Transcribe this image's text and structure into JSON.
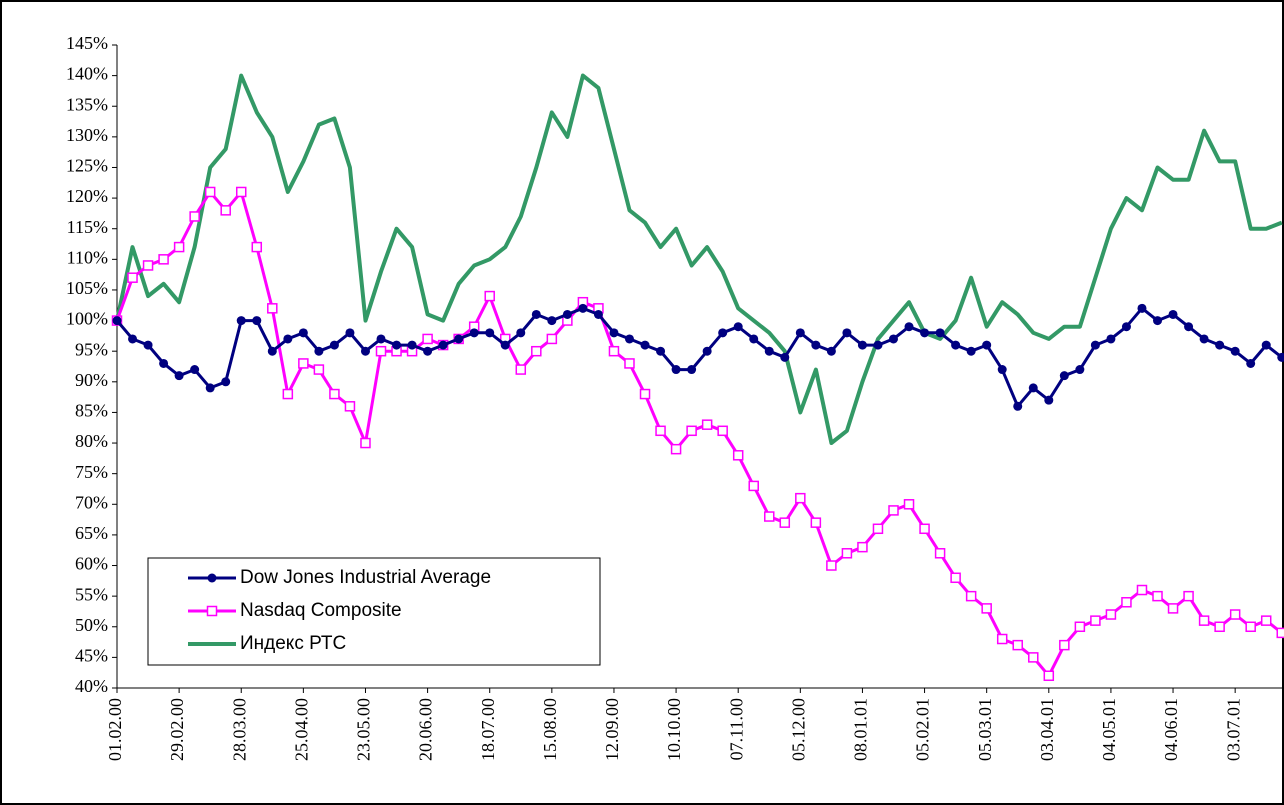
{
  "chart_data": {
    "type": "line",
    "categories": [
      "01.02.00",
      null,
      null,
      null,
      "29.02.00",
      null,
      null,
      null,
      "28.03.00",
      null,
      null,
      null,
      "25.04.00",
      null,
      null,
      null,
      "23.05.00",
      null,
      null,
      null,
      "20.06.00",
      null,
      null,
      null,
      "18.07.00",
      null,
      null,
      null,
      "15.08.00",
      null,
      null,
      null,
      "12.09.00",
      null,
      null,
      null,
      "10.10.00",
      null,
      null,
      null,
      "07.11.00",
      null,
      null,
      null,
      "05.12.00",
      null,
      null,
      null,
      "08.01.01",
      null,
      null,
      null,
      "05.02.01",
      null,
      null,
      null,
      "05.03.01",
      null,
      null,
      null,
      "03.04.01",
      null,
      null,
      null,
      "04.05.01",
      null,
      null,
      null,
      "04.06.01",
      null,
      null,
      null,
      "03.07.01",
      null,
      null,
      null
    ],
    "series": [
      {
        "name": "Dow Jones Industrial Average",
        "color": "#000080",
        "marker": "circle",
        "values": [
          100,
          97,
          96,
          93,
          91,
          92,
          89,
          90,
          100,
          100,
          95,
          97,
          98,
          95,
          96,
          98,
          95,
          97,
          96,
          96,
          95,
          96,
          97,
          98,
          98,
          96,
          98,
          101,
          100,
          101,
          102,
          101,
          98,
          97,
          96,
          95,
          92,
          92,
          95,
          98,
          99,
          97,
          95,
          94,
          98,
          96,
          95,
          98,
          96,
          96,
          97,
          99,
          98,
          98,
          96,
          95,
          96,
          92,
          86,
          89,
          87,
          91,
          92,
          96,
          97,
          99,
          102,
          100,
          101,
          99,
          97,
          96,
          95,
          93,
          96,
          94
        ]
      },
      {
        "name": "Nasdaq Composite",
        "color": "#ff00ff",
        "marker": "square",
        "values": [
          100,
          107,
          109,
          110,
          112,
          117,
          121,
          118,
          121,
          112,
          102,
          88,
          93,
          92,
          88,
          86,
          80,
          95,
          95,
          95,
          97,
          96,
          97,
          99,
          104,
          97,
          92,
          95,
          97,
          100,
          103,
          102,
          95,
          93,
          88,
          82,
          79,
          82,
          83,
          82,
          78,
          73,
          68,
          67,
          71,
          67,
          60,
          62,
          63,
          66,
          69,
          70,
          66,
          62,
          58,
          55,
          53,
          48,
          47,
          45,
          42,
          47,
          50,
          51,
          52,
          54,
          56,
          55,
          53,
          55,
          51,
          50,
          52,
          50,
          51,
          49
        ]
      },
      {
        "name": "Индекс РТС",
        "color": "#339966",
        "marker": "none",
        "values": [
          100,
          112,
          104,
          106,
          103,
          112,
          125,
          128,
          140,
          134,
          130,
          121,
          126,
          132,
          133,
          125,
          100,
          108,
          115,
          112,
          101,
          100,
          106,
          109,
          110,
          112,
          117,
          125,
          134,
          130,
          140,
          138,
          128,
          118,
          116,
          112,
          115,
          109,
          112,
          108,
          102,
          100,
          98,
          95,
          85,
          92,
          80,
          82,
          90,
          97,
          100,
          103,
          98,
          97,
          100,
          107,
          99,
          103,
          101,
          98,
          97,
          99,
          99,
          107,
          115,
          120,
          118,
          125,
          123,
          123,
          131,
          126,
          126,
          115,
          115,
          116
        ]
      }
    ],
    "ylim": [
      40,
      145
    ],
    "yticks": [
      {
        "value": 40,
        "label": "40%"
      },
      {
        "value": 45,
        "label": "45%"
      },
      {
        "value": 50,
        "label": "50%"
      },
      {
        "value": 55,
        "label": "55%"
      },
      {
        "value": 60,
        "label": "60%"
      },
      {
        "value": 65,
        "label": "65%"
      },
      {
        "value": 70,
        "label": "70%"
      },
      {
        "value": 75,
        "label": "75%"
      },
      {
        "value": 80,
        "label": "80%"
      },
      {
        "value": 85,
        "label": "85%"
      },
      {
        "value": 90,
        "label": "90%"
      },
      {
        "value": 95,
        "label": "95%"
      },
      {
        "value": 100,
        "label": "100%"
      },
      {
        "value": 105,
        "label": "105%"
      },
      {
        "value": 110,
        "label": "110%"
      },
      {
        "value": 115,
        "label": "115%"
      },
      {
        "value": 120,
        "label": "120%"
      },
      {
        "value": 125,
        "label": "125%"
      },
      {
        "value": 130,
        "label": "130%"
      },
      {
        "value": 135,
        "label": "135%"
      },
      {
        "value": 140,
        "label": "140%"
      },
      {
        "value": 145,
        "label": "145%"
      }
    ],
    "grid": false,
    "legend": "lower left"
  }
}
